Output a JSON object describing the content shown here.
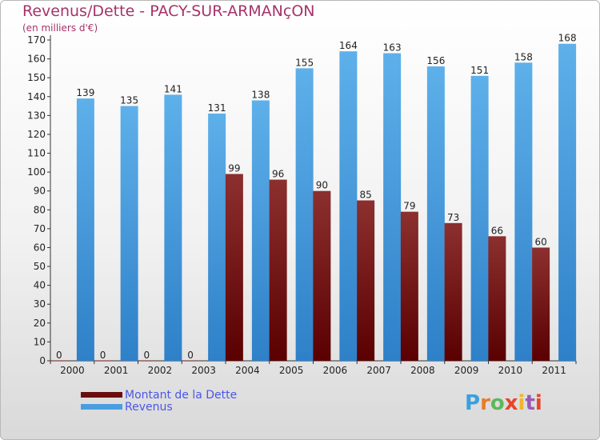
{
  "title": "Revenus/Dette - PACY-SUR-ARMANçON",
  "subtitle": "(en milliers d'€)",
  "logo": "Proxiti",
  "colors": {
    "dette": "#6b0d0d",
    "revenus": "#4a9ee0",
    "title": "#a5336a",
    "legend_text": "#4a56e8"
  },
  "chart_data": {
    "type": "bar",
    "categories": [
      "2000",
      "2001",
      "2002",
      "2003",
      "2004",
      "2005",
      "2006",
      "2007",
      "2008",
      "2009",
      "2010",
      "2011"
    ],
    "series": [
      {
        "name": "Montant de la Dette",
        "values": [
          0,
          0,
          0,
          0,
          99,
          96,
          90,
          85,
          79,
          73,
          66,
          60
        ]
      },
      {
        "name": "Revenus",
        "values": [
          139,
          135,
          141,
          131,
          138,
          155,
          164,
          163,
          156,
          151,
          158,
          168
        ]
      }
    ],
    "ylim": [
      0,
      170
    ],
    "yticks": [
      0,
      10,
      20,
      30,
      40,
      50,
      60,
      70,
      80,
      90,
      100,
      110,
      120,
      130,
      140,
      150,
      160,
      170
    ],
    "grid": false,
    "legend_position": "bottom-left"
  }
}
